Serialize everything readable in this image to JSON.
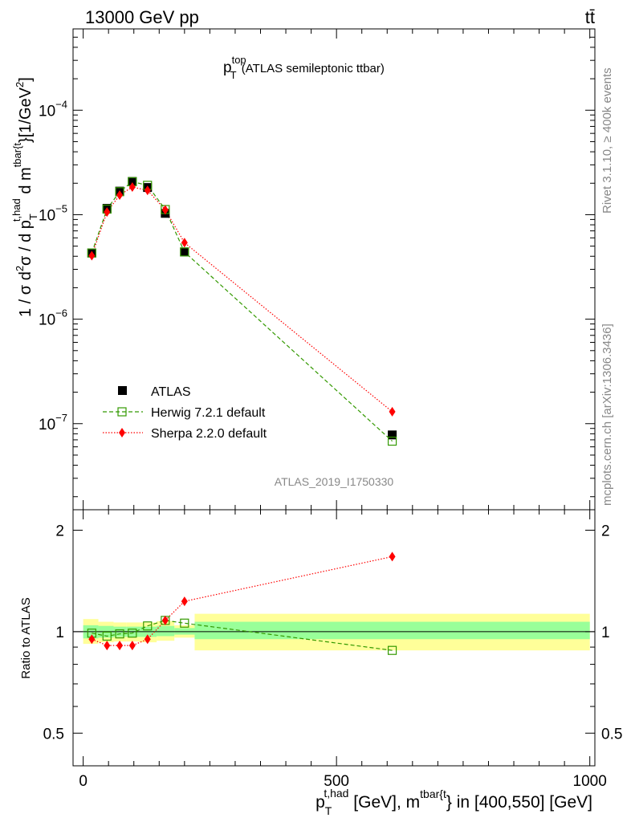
{
  "header": {
    "energy_label": "13000 GeV pp",
    "process_label": "tt̄"
  },
  "side_labels": {
    "rivet": "Rivet 3.1.10, ≥ 400k events",
    "mcplots": "mcplots.cern.ch [arXiv:1306.3436]"
  },
  "chart_data": [
    {
      "type": "scatter",
      "panel": "main",
      "title": {
        "main": "p",
        "sup": "top",
        "sub": "T",
        "rest": " (ATLAS semileptonic ttbar)"
      },
      "analysis_label": "ATLAS_2019_I1750330",
      "ylabel": {
        "p1": "1 / σ d",
        "s1": "2",
        "p2": "σ / d p",
        "sub": "T",
        "sup": "t,had",
        "p3": " d m",
        "sup2": "tbar{t",
        "p4": "}[1/GeV",
        "s2": "2",
        "p5": "]"
      },
      "yscale": "log",
      "ylim": [
        1.5e-08,
        0.0006
      ],
      "xlim": [
        -20,
        1010
      ],
      "y_tick_labels": [
        {
          "value": 1e-07,
          "base": "10",
          "exp": "−7"
        },
        {
          "value": 1e-06,
          "base": "10",
          "exp": "−6"
        },
        {
          "value": 1e-05,
          "base": "10",
          "exp": "−5"
        },
        {
          "value": 0.0001,
          "base": "10",
          "exp": "−4"
        }
      ],
      "legend_position": "bottom-left",
      "series": [
        {
          "name": "ATLAS",
          "color": "#000000",
          "marker": "square-filled",
          "x": [
            17,
            47,
            72,
            97,
            127,
            162,
            200,
            610
          ],
          "y": [
            4.3e-06,
            1.15e-05,
            1.68e-05,
            2.08e-05,
            1.82e-05,
            1.03e-05,
            4.4e-06,
            7.8e-08
          ]
        },
        {
          "name": "Herwig 7.2.1 default",
          "color": "#339900",
          "marker": "square-open",
          "line": "dashed",
          "x": [
            17,
            47,
            72,
            97,
            127,
            162,
            200,
            610
          ],
          "y": [
            4.3e-06,
            1.13e-05,
            1.66e-05,
            2.07e-05,
            1.91e-05,
            1.12e-05,
            4.4e-06,
            6.8e-08
          ]
        },
        {
          "name": "Sherpa 2.2.0 default",
          "color": "#ff0000",
          "marker": "diamond-filled",
          "line": "dotted",
          "x": [
            17,
            47,
            72,
            97,
            127,
            162,
            200,
            610
          ],
          "y": [
            4.05e-06,
            1.06e-05,
            1.54e-05,
            1.84e-05,
            1.71e-05,
            1.11e-05,
            5.4e-06,
            1.3e-07
          ]
        }
      ]
    },
    {
      "type": "scatter",
      "panel": "ratio",
      "ylabel": "Ratio to ATLAS",
      "yscale": "log",
      "ylim": [
        0.4,
        2.3
      ],
      "xlim": [
        -20,
        1010
      ],
      "x_tick_labels": [
        "0",
        "500",
        "1000"
      ],
      "x_tick_values": [
        0,
        500,
        1000
      ],
      "y_tick_labels": [
        "0.5",
        "1",
        "2"
      ],
      "y_tick_values": [
        0.5,
        1,
        2
      ],
      "xlabel": {
        "p": "p",
        "sub": "T",
        "sup": "t,had",
        "mid": " [GeV], m",
        "sup2": "tbar{t",
        "rest": "} in [400,550] [GeV]"
      },
      "bands": {
        "edges": [
          0,
          30,
          60,
          85,
          110,
          145,
          180,
          220,
          1000
        ],
        "yellow_lo": [
          0.92,
          0.93,
          0.935,
          0.935,
          0.93,
          0.94,
          0.96,
          0.88
        ],
        "yellow_hi": [
          1.09,
          1.07,
          1.065,
          1.065,
          1.065,
          1.075,
          1.045,
          1.13
        ],
        "green_lo": [
          0.955,
          0.96,
          0.965,
          0.965,
          0.965,
          0.97,
          0.98,
          0.95
        ],
        "green_hi": [
          1.045,
          1.04,
          1.035,
          1.035,
          1.035,
          1.04,
          1.025,
          1.07
        ],
        "yellow_color": "#ffff99",
        "green_color": "#99ff99"
      },
      "series": [
        {
          "name": "Herwig 7.2.1 default",
          "color": "#339900",
          "marker": "square-open",
          "line": "dashed",
          "x": [
            17,
            47,
            72,
            97,
            127,
            162,
            200,
            610
          ],
          "y": [
            0.99,
            0.97,
            0.985,
            0.99,
            1.04,
            1.08,
            1.06,
            0.88
          ]
        },
        {
          "name": "Sherpa 2.2.0 default",
          "color": "#ff0000",
          "marker": "diamond-filled",
          "line": "dotted",
          "x": [
            17,
            47,
            72,
            97,
            127,
            162,
            200,
            610
          ],
          "y": [
            0.95,
            0.91,
            0.91,
            0.91,
            0.95,
            1.08,
            1.23,
            1.67
          ]
        }
      ]
    }
  ]
}
